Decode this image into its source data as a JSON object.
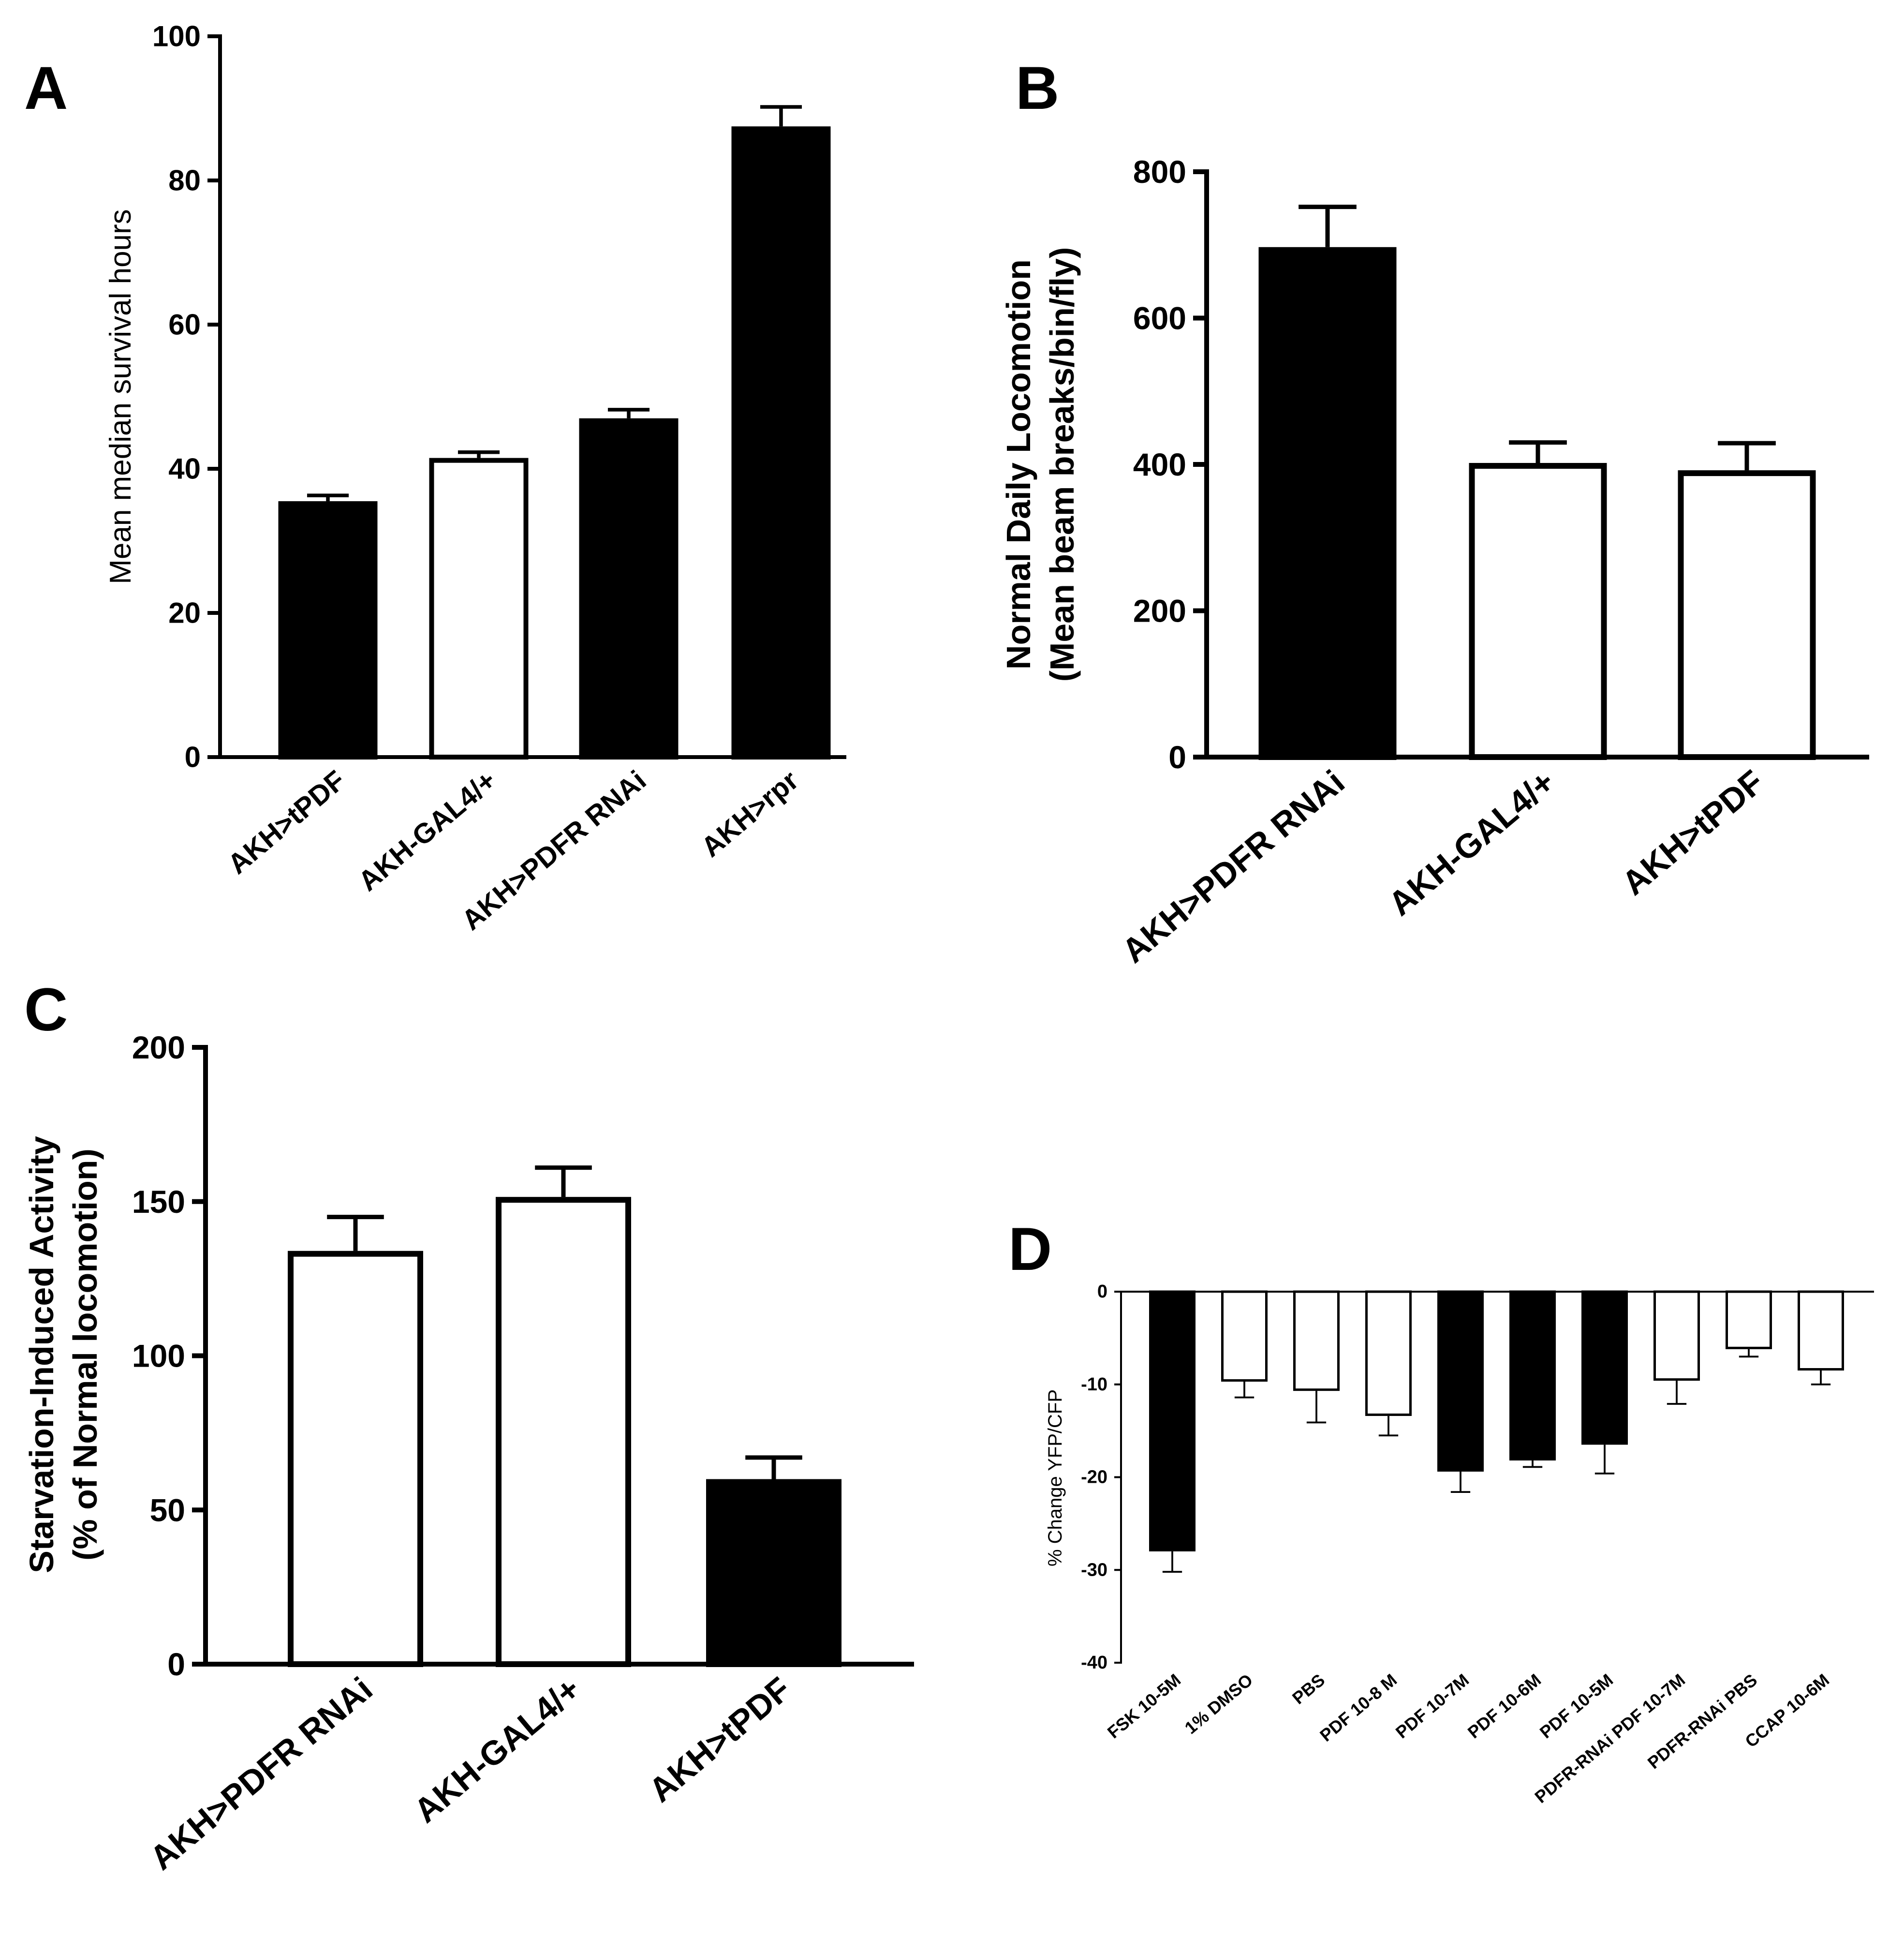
{
  "chart_data": [
    {
      "type": "bar",
      "panel": "A",
      "title": "",
      "xlabel": "",
      "ylabel": "Mean median survival hours",
      "ylim": [
        0,
        100
      ],
      "yticks": [
        0,
        20,
        40,
        60,
        80,
        100
      ],
      "categories": [
        "AKH>tPDF",
        "AKH-GAL4/+",
        "AKH>PDFR RNAi",
        "AKH>rpr"
      ],
      "values": [
        35.5,
        41.5,
        47,
        87.5
      ],
      "errors": [
        0.8,
        0.8,
        1.2,
        2.7
      ],
      "fills": [
        "#000000",
        "#ffffff",
        "#000000",
        "#000000"
      ]
    },
    {
      "type": "bar",
      "panel": "B",
      "title": "",
      "xlabel": "",
      "ylabel": "Normal Daily Locomotion",
      "ylabel2": "(Mean beam breaks/bin/fly)",
      "ylim": [
        0,
        800
      ],
      "yticks": [
        0,
        200,
        400,
        600,
        800
      ],
      "categories": [
        "AKH>PDFR RNAi",
        "AKH-GAL4/+",
        "AKH>tPDF"
      ],
      "values": [
        697,
        402,
        392
      ],
      "errors": [
        55,
        28,
        37
      ],
      "fills": [
        "#000000",
        "#ffffff",
        "#ffffff"
      ]
    },
    {
      "type": "bar",
      "panel": "C",
      "title": "",
      "xlabel": "",
      "ylabel": "Starvation-Induced Activity",
      "ylabel2": "(% of Normal locomotion)",
      "ylim": [
        0,
        200
      ],
      "yticks": [
        0,
        50,
        100,
        150,
        200
      ],
      "categories": [
        "AKH>PDFR RNAi",
        "AKH-GAL4/+",
        "AKH>tPDF"
      ],
      "values": [
        134,
        151.5,
        60
      ],
      "errors": [
        11,
        9.5,
        7
      ],
      "fills": [
        "#ffffff",
        "#ffffff",
        "#000000"
      ]
    },
    {
      "type": "bar",
      "panel": "D",
      "title": "",
      "xlabel": "",
      "ylabel": "% Change YFP/CFP",
      "ylim": [
        -40,
        0
      ],
      "yticks": [
        0,
        -10,
        -20,
        -30,
        -40
      ],
      "categories": [
        "FSK 10-5M",
        "1% DMSO",
        "PBS",
        "PDF 10-8 M",
        "PDF 10-7M",
        "PDF 10-6M",
        "PDF 10-5M",
        "PDFR-RNAi PDF 10-7M",
        "PDFR-RNAi PBS",
        "CCAP 10-6M"
      ],
      "values": [
        -28,
        -9.7,
        -10.7,
        -13.4,
        -19.4,
        -18.2,
        -16.5,
        -9.6,
        -6.2,
        -8.5
      ],
      "errors": [
        2.2,
        1.7,
        3.4,
        2.1,
        2.2,
        0.7,
        3.1,
        2.5,
        0.8,
        1.5
      ],
      "fills": [
        "#000000",
        "#ffffff",
        "#ffffff",
        "#ffffff",
        "#000000",
        "#000000",
        "#000000",
        "#ffffff",
        "#ffffff",
        "#ffffff"
      ]
    }
  ]
}
